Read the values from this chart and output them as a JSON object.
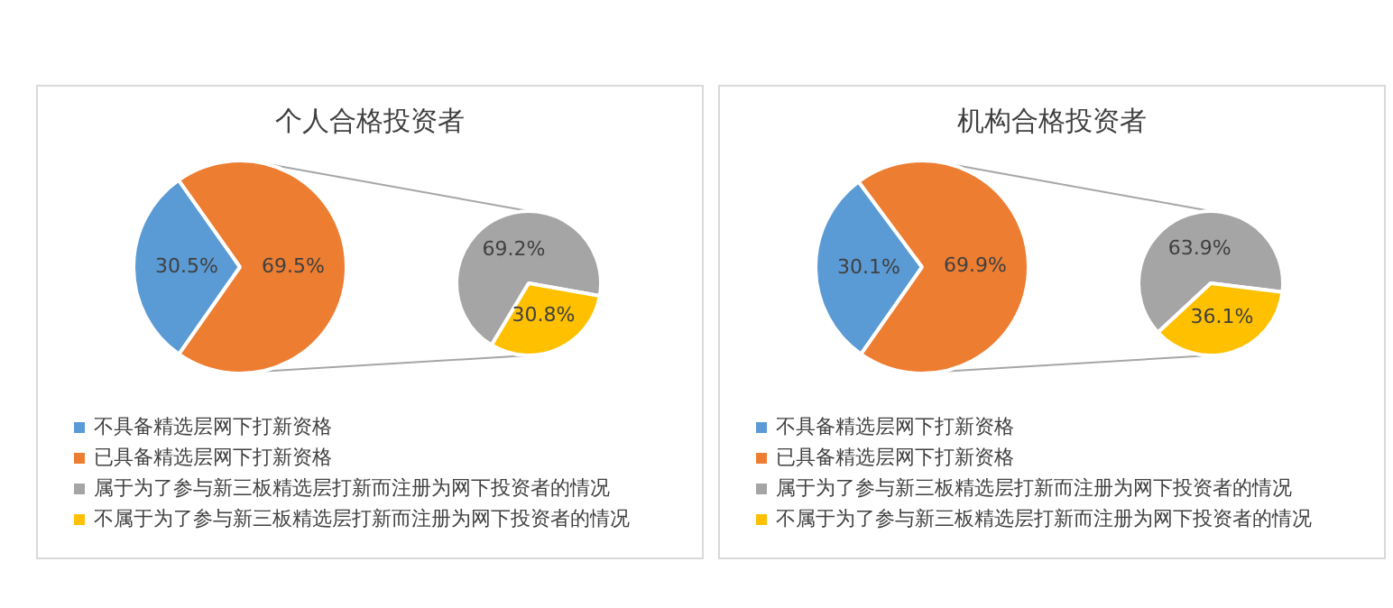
{
  "chart_data": [
    {
      "type": "pie",
      "title": "个人合格投资者",
      "categories": [
        "不具备精选层网下打新资格",
        "已具备精选层网下打新资格"
      ],
      "values": [
        30.5,
        69.5
      ],
      "colors": [
        "#5b9bd5",
        "#ed7d31"
      ],
      "value_labels": [
        "30.5%",
        "69.5%"
      ],
      "legend": "bottom"
    },
    {
      "type": "pie",
      "categories": [
        "属于为了参与新三板精选层打新而注册为网下投资者的情况",
        "不属于为了参与新三板精选层打新而注册为网下投资者的情况"
      ],
      "values": [
        69.2,
        30.8
      ],
      "colors": [
        "#a5a5a5",
        "#ffc000"
      ],
      "value_labels": [
        "69.2%",
        "30.8%"
      ],
      "legend": "bottom"
    },
    {
      "type": "pie",
      "title": "机构合格投资者",
      "categories": [
        "不具备精选层网下打新资格",
        "已具备精选层网下打新资格"
      ],
      "values": [
        30.1,
        69.9
      ],
      "colors": [
        "#5b9bd5",
        "#ed7d31"
      ],
      "value_labels": [
        "30.1%",
        "69.9%"
      ],
      "legend": "bottom"
    },
    {
      "type": "pie",
      "categories": [
        "属于为了参与新三板精选层打新而注册为网下投资者的情况",
        "不属于为了参与新三板精选层打新而注册为网下投资者的情况"
      ],
      "values": [
        63.9,
        36.1
      ],
      "colors": [
        "#a5a5a5",
        "#ffc000"
      ],
      "value_labels": [
        "63.9%",
        "36.1%"
      ],
      "legend": "bottom"
    }
  ]
}
